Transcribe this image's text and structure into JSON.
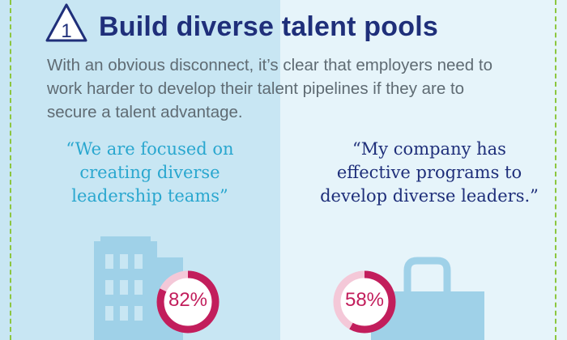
{
  "section": {
    "number": "1",
    "title": "Build diverse talent pools",
    "intro_lines": [
      "With an obvious disconnect, it’s clear that employers need to",
      "work harder to develop their talent pipelines if they are to",
      "secure a talent advantage."
    ]
  },
  "left": {
    "quote_lines": [
      "“We are focused on",
      "creating diverse",
      "leadership teams”"
    ],
    "percent_label": "82%",
    "percent_value": 82,
    "icon": "building-icon"
  },
  "right": {
    "quote_lines": [
      "“My company has",
      "effective programs to",
      "develop diverse leaders.”"
    ],
    "percent_label": "58%",
    "percent_value": 58,
    "icon": "briefcase-icon"
  },
  "colors": {
    "title_navy": "#1f2f7a",
    "quote_blue": "#2aa7cf",
    "accent_pink": "#c21e5c",
    "ring_track": "#f4c8d8",
    "border_green": "#8cc63f",
    "panel_left": "#c8e6f3",
    "panel_right": "#e6f4fa"
  }
}
